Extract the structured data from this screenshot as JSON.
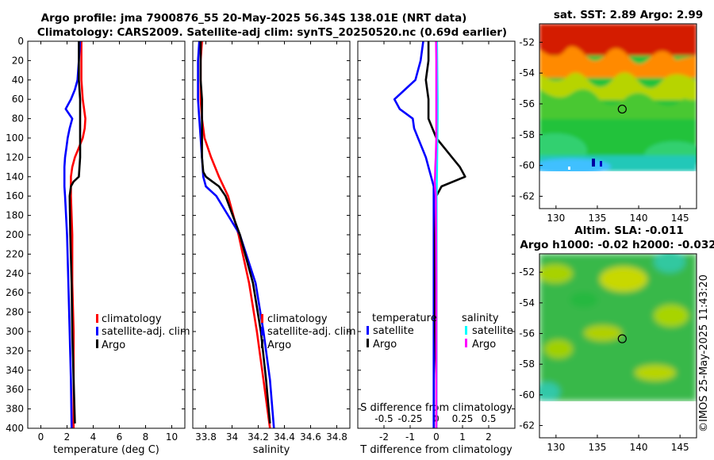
{
  "title": {
    "line1": "Argo profile: jma 7900876_55 20-May-2025 56.34S 138.01E (NRT data)",
    "line2": "Climatology: CARS2009. Satellite-adj clim: synTS_20250520.nc (0.69d earlier)"
  },
  "watermark": "©IMOS 25-May-2025 11:43:20",
  "colors": {
    "climatology": "#ff0000",
    "satellite": "#0000ff",
    "argo": "#000000",
    "sal_satellite": "#00ffff",
    "sal_argo": "#ff00ff"
  },
  "chart_data": [
    {
      "type": "line",
      "name": "temperature-profile",
      "xlabel": "temperature (deg C)",
      "ylabel": "",
      "xlim": [
        -1,
        11
      ],
      "ylim": [
        400,
        0
      ],
      "xticks": [
        "0",
        "2",
        "4",
        "6",
        "8",
        "10"
      ],
      "yticks": [
        "0",
        "20",
        "40",
        "60",
        "80",
        "100",
        "120",
        "140",
        "160",
        "180",
        "200",
        "220",
        "240",
        "260",
        "280",
        "300",
        "320",
        "340",
        "360",
        "380",
        "400"
      ],
      "grid": false,
      "legend": {
        "placement": "middle-right",
        "entries": [
          "climatology",
          "satellite-adj. clim",
          "Argo"
        ]
      },
      "series": [
        {
          "name": "climatology",
          "color": "#ff0000",
          "depth": [
            0,
            20,
            40,
            60,
            70,
            80,
            90,
            100,
            110,
            120,
            130,
            140,
            150,
            160,
            200,
            250,
            300,
            350,
            400
          ],
          "values": [
            3.1,
            3.1,
            3.1,
            3.2,
            3.3,
            3.4,
            3.35,
            3.2,
            2.9,
            2.6,
            2.4,
            2.3,
            2.3,
            2.3,
            2.4,
            2.4,
            2.5,
            2.5,
            2.5
          ]
        },
        {
          "name": "satellite-adj. clim",
          "color": "#0000ff",
          "depth": [
            0,
            20,
            40,
            50,
            60,
            70,
            80,
            90,
            100,
            110,
            120,
            130,
            140,
            150,
            160,
            200,
            250,
            300,
            350,
            400
          ],
          "values": [
            3.0,
            2.9,
            2.8,
            2.6,
            2.3,
            1.9,
            2.4,
            2.2,
            2.05,
            1.95,
            1.85,
            1.8,
            1.8,
            1.8,
            1.85,
            2.0,
            2.1,
            2.2,
            2.3,
            2.35
          ]
        },
        {
          "name": "Argo",
          "color": "#000000",
          "depth": [
            0,
            20,
            40,
            60,
            80,
            100,
            120,
            140,
            145,
            150,
            160,
            200,
            250,
            300,
            350,
            395
          ],
          "values": [
            2.9,
            2.9,
            2.9,
            3.0,
            3.0,
            3.0,
            3.0,
            2.9,
            2.5,
            2.3,
            2.2,
            2.25,
            2.35,
            2.4,
            2.5,
            2.6
          ]
        }
      ]
    },
    {
      "type": "line",
      "name": "salinity-profile",
      "xlabel": "salinity",
      "ylabel": "",
      "xlim": [
        33.7,
        34.9
      ],
      "ylim": [
        400,
        0
      ],
      "xticks": [
        "33.8",
        "34",
        "34.2",
        "34.4",
        "34.6",
        "34.8"
      ],
      "grid": false,
      "legend": {
        "placement": "middle-right",
        "entries": [
          "climatology",
          "satellite-adj. clim",
          "Argo"
        ]
      },
      "series": [
        {
          "name": "climatology",
          "color": "#ff0000",
          "depth": [
            0,
            20,
            40,
            60,
            80,
            100,
            120,
            140,
            160,
            200,
            250,
            300,
            350,
            400
          ],
          "values": [
            33.77,
            33.76,
            33.76,
            33.76,
            33.77,
            33.79,
            33.84,
            33.9,
            33.97,
            34.05,
            34.13,
            34.19,
            34.24,
            34.29
          ]
        },
        {
          "name": "satellite-adj. clim",
          "color": "#0000ff",
          "depth": [
            0,
            20,
            40,
            60,
            80,
            100,
            120,
            140,
            150,
            160,
            200,
            250,
            300,
            350,
            400
          ],
          "values": [
            33.75,
            33.74,
            33.74,
            33.74,
            33.75,
            33.76,
            33.77,
            33.78,
            33.8,
            33.88,
            34.06,
            34.18,
            34.24,
            34.29,
            34.32
          ]
        },
        {
          "name": "Argo",
          "color": "#000000",
          "depth": [
            0,
            20,
            40,
            60,
            80,
            100,
            120,
            135,
            140,
            145,
            150,
            160,
            200,
            250,
            300,
            350,
            395
          ],
          "values": [
            33.76,
            33.76,
            33.76,
            33.77,
            33.77,
            33.77,
            33.77,
            33.78,
            33.8,
            33.85,
            33.9,
            33.95,
            34.06,
            34.16,
            34.22,
            34.26,
            34.29
          ]
        }
      ]
    },
    {
      "type": "line",
      "name": "difference-profile",
      "xlabel": "T difference from climatology",
      "xlabel_top": "S difference from climatology",
      "xlim": [
        -3,
        3
      ],
      "ylim": [
        400,
        0
      ],
      "xticks": [
        "-2",
        "-1",
        "0",
        "1",
        "2"
      ],
      "xticks_top": [
        "-0.5",
        "-0.25",
        "0",
        "0.25",
        "0.5"
      ],
      "grid": false,
      "legend": {
        "placement": "lower-center",
        "headers": [
          "temperature",
          "salinity"
        ],
        "entries": [
          "satellite",
          "Argo",
          "satellite",
          "Argo"
        ]
      },
      "series": [
        {
          "name": "temperature satellite",
          "color": "#0000ff",
          "depth": [
            0,
            20,
            40,
            50,
            60,
            70,
            80,
            90,
            100,
            110,
            120,
            130,
            140,
            150,
            160,
            200,
            250,
            300,
            350,
            400
          ],
          "values": [
            -0.5,
            -0.6,
            -0.8,
            -1.2,
            -1.6,
            -1.4,
            -0.9,
            -0.85,
            -0.7,
            -0.55,
            -0.4,
            -0.3,
            -0.2,
            -0.1,
            -0.1,
            -0.1,
            -0.1,
            -0.1,
            -0.1,
            -0.1
          ]
        },
        {
          "name": "temperature Argo",
          "color": "#000000",
          "depth": [
            0,
            20,
            40,
            60,
            80,
            100,
            110,
            120,
            130,
            140,
            150,
            160,
            200,
            250,
            300,
            350,
            400
          ],
          "values": [
            -0.3,
            -0.3,
            -0.4,
            -0.3,
            -0.3,
            0.0,
            0.3,
            0.6,
            0.9,
            1.1,
            0.2,
            0.0,
            -0.05,
            -0.05,
            -0.05,
            0.0,
            0.0
          ]
        },
        {
          "name": "salinity satellite",
          "color": "#00ffff",
          "depth": [
            0,
            20,
            40,
            60,
            80,
            100,
            120,
            140,
            160,
            200,
            250,
            300,
            350,
            400
          ],
          "values": [
            0.02,
            0.03,
            0.04,
            0.05,
            0.05,
            0.04,
            0.03,
            0.02,
            0.01,
            0.01,
            0.01,
            0.01,
            0.01,
            0.01
          ]
        },
        {
          "name": "salinity Argo",
          "color": "#ff00ff",
          "depth": [
            0,
            20,
            40,
            60,
            80,
            100,
            120,
            130,
            140,
            145,
            150,
            160,
            200,
            250,
            300,
            350,
            400
          ],
          "values": [
            -0.01,
            0.0,
            0.0,
            0.0,
            0.0,
            0.0,
            -0.02,
            -0.04,
            -0.05,
            -0.06,
            -0.05,
            -0.02,
            -0.01,
            0.0,
            0.0,
            0.0,
            0.0
          ]
        }
      ]
    },
    {
      "type": "heatmap",
      "name": "satellite-sst-map",
      "title": "sat. SST: 2.89 Argo: 2.99",
      "xticks": [
        "130",
        "135",
        "140",
        "145"
      ],
      "yticks": [
        "-52",
        "-54",
        "-56",
        "-58",
        "-60",
        "-62"
      ],
      "xlim": [
        128,
        147
      ],
      "ylim": [
        -62.8,
        -50.8
      ],
      "profile_location": {
        "lon": 138.01,
        "lat": -56.34
      }
    },
    {
      "type": "heatmap",
      "name": "altimetry-sla-map",
      "title_line1": "Altim. SLA: -0.011",
      "title_line2": "Argo h1000: -0.02 h2000: -0.032",
      "xticks": [
        "130",
        "135",
        "140",
        "145"
      ],
      "yticks": [
        "-52",
        "-54",
        "-56",
        "-58",
        "-60",
        "-62"
      ],
      "xlim": [
        128,
        147
      ],
      "ylim": [
        -62.8,
        -50.8
      ],
      "profile_location": {
        "lon": 138.01,
        "lat": -56.34
      }
    }
  ]
}
